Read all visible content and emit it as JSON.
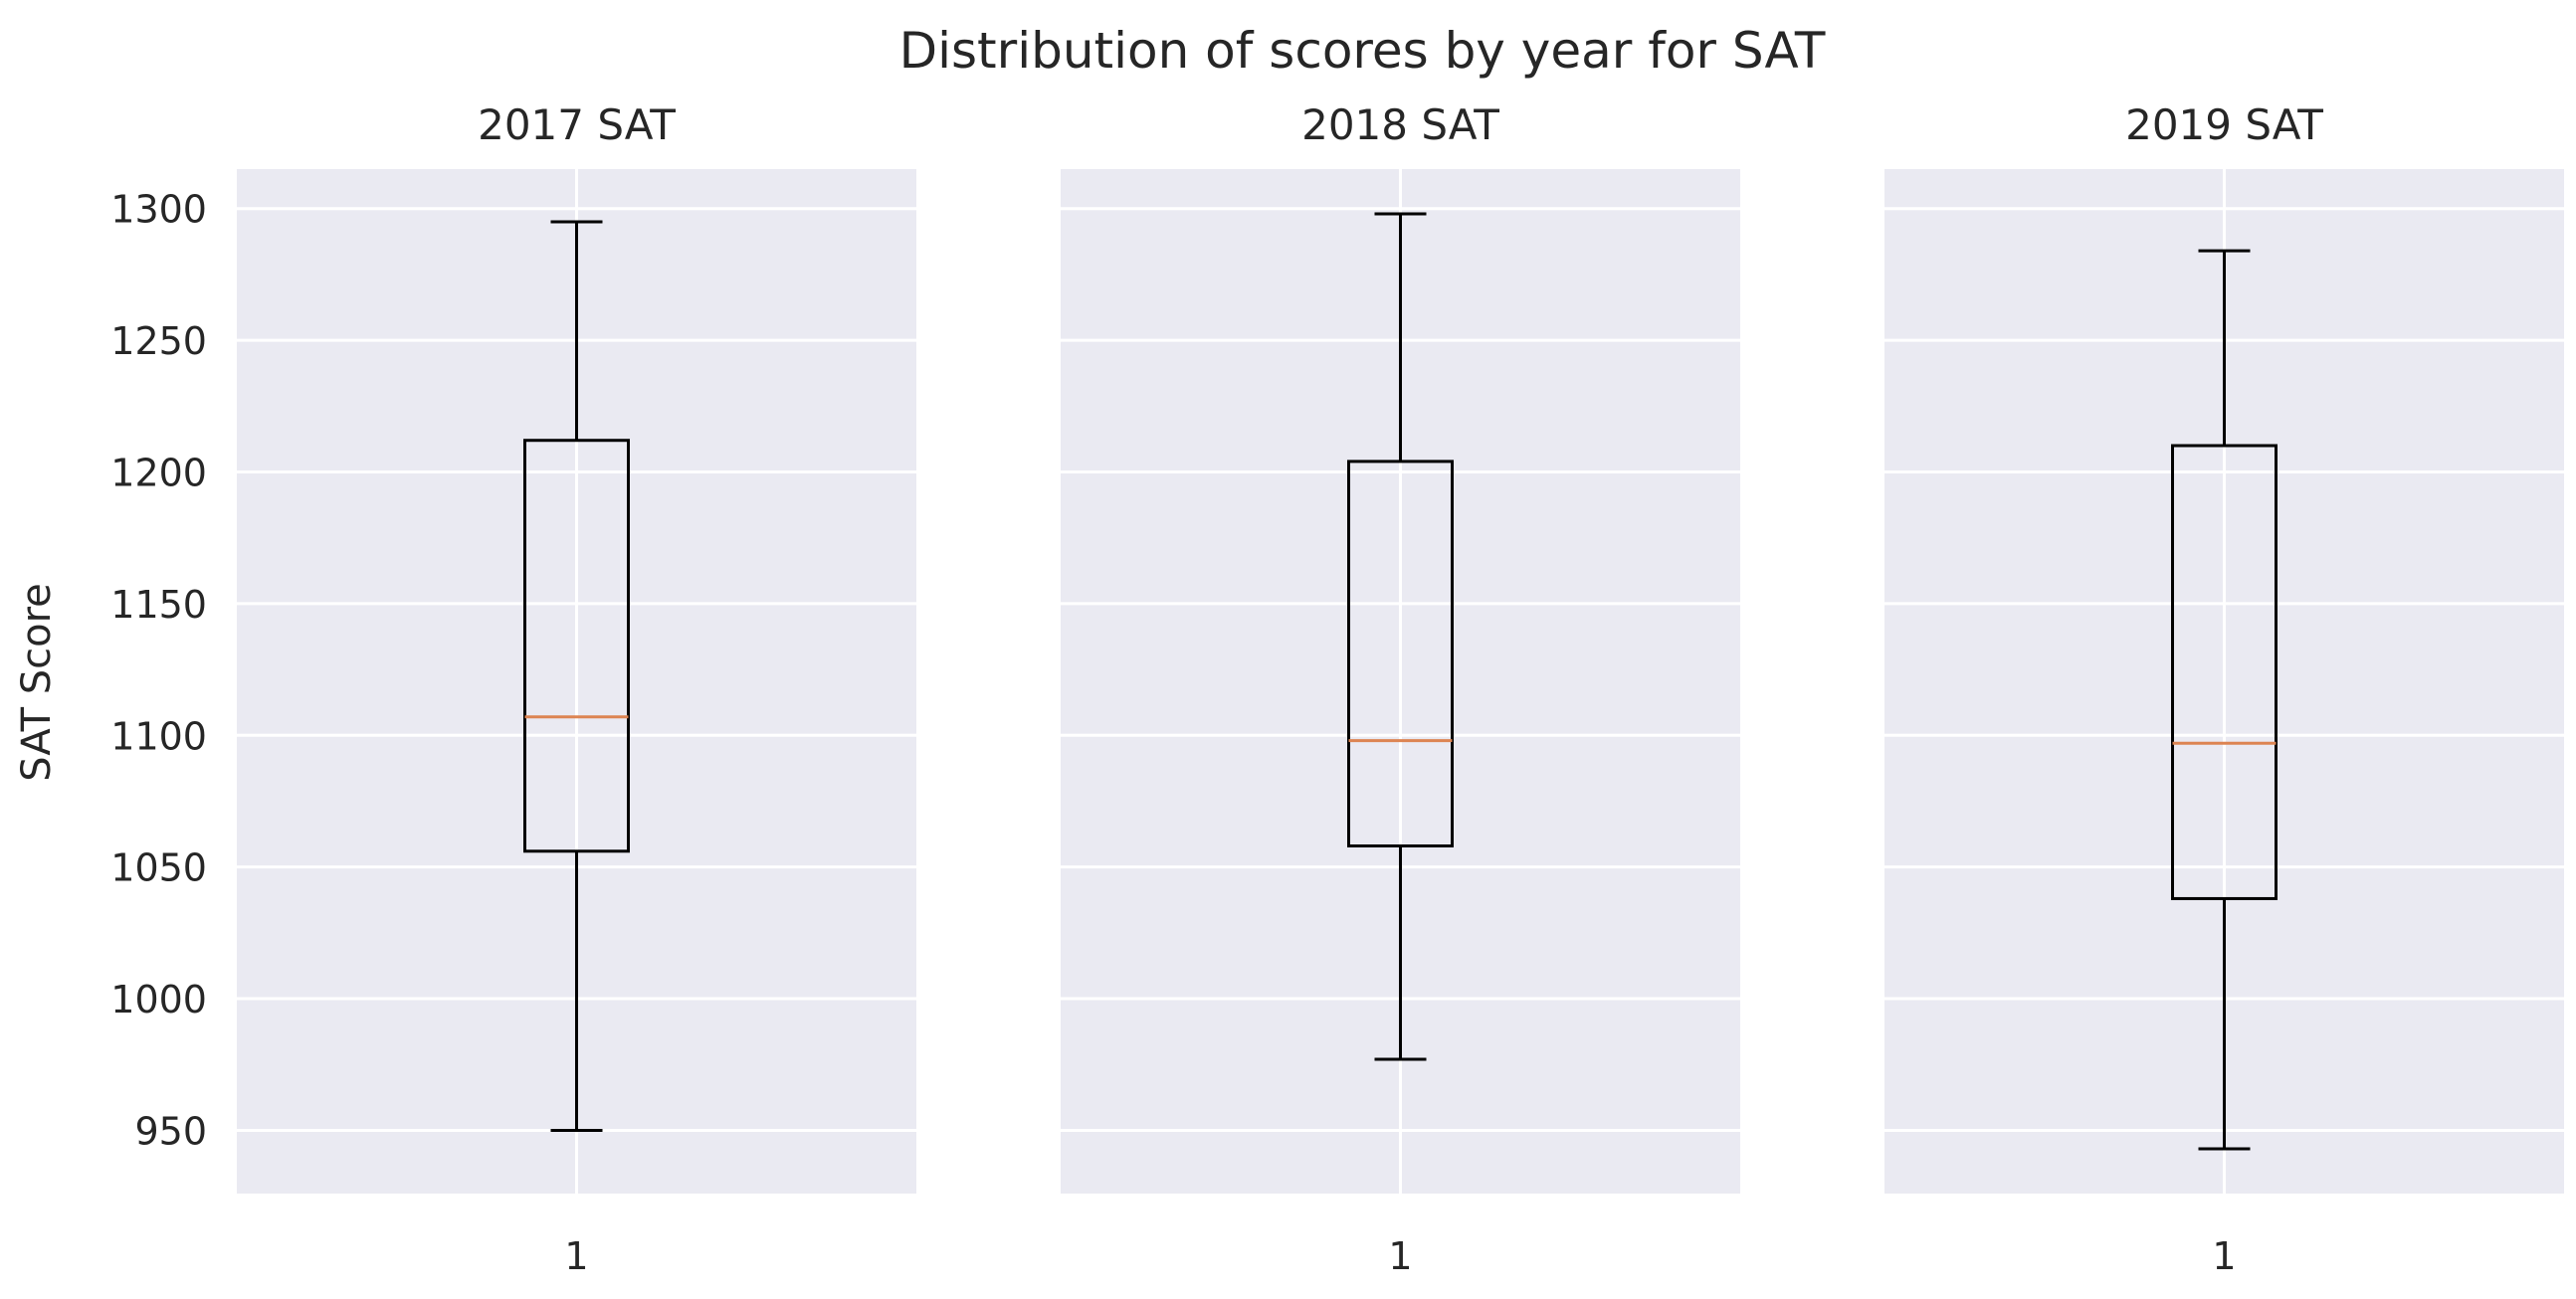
{
  "figure": {
    "title": "Distribution of scores by year for SAT",
    "ylabel": "SAT Score"
  },
  "colors": {
    "panel_background": "#eaeaf2",
    "grid": "#ffffff",
    "box_line": "#000000",
    "median": "#dd8452",
    "text": "#262626"
  },
  "chart_data": [
    {
      "type": "boxplot",
      "title": "2017 SAT",
      "xlabel": "",
      "ylabel": "SAT Score",
      "categories": [
        "1"
      ],
      "ylim": [
        926,
        1315
      ],
      "yticks": [
        950,
        1000,
        1050,
        1100,
        1150,
        1200,
        1250,
        1300
      ],
      "grid": true,
      "boxes": [
        {
          "whisker_low": 950,
          "q1": 1056,
          "median": 1107,
          "q3": 1212,
          "whisker_high": 1295
        }
      ]
    },
    {
      "type": "boxplot",
      "title": "2018 SAT",
      "xlabel": "",
      "ylabel": "",
      "categories": [
        "1"
      ],
      "ylim": [
        926,
        1315
      ],
      "yticks": [
        950,
        1000,
        1050,
        1100,
        1150,
        1200,
        1250,
        1300
      ],
      "grid": true,
      "boxes": [
        {
          "whisker_low": 977,
          "q1": 1058,
          "median": 1098,
          "q3": 1204,
          "whisker_high": 1298
        }
      ]
    },
    {
      "type": "boxplot",
      "title": "2019 SAT",
      "xlabel": "",
      "ylabel": "",
      "categories": [
        "1"
      ],
      "ylim": [
        926,
        1315
      ],
      "yticks": [
        950,
        1000,
        1050,
        1100,
        1150,
        1200,
        1250,
        1300
      ],
      "grid": true,
      "boxes": [
        {
          "whisker_low": 943,
          "q1": 1038,
          "median": 1097,
          "q3": 1210,
          "whisker_high": 1284
        }
      ]
    }
  ]
}
